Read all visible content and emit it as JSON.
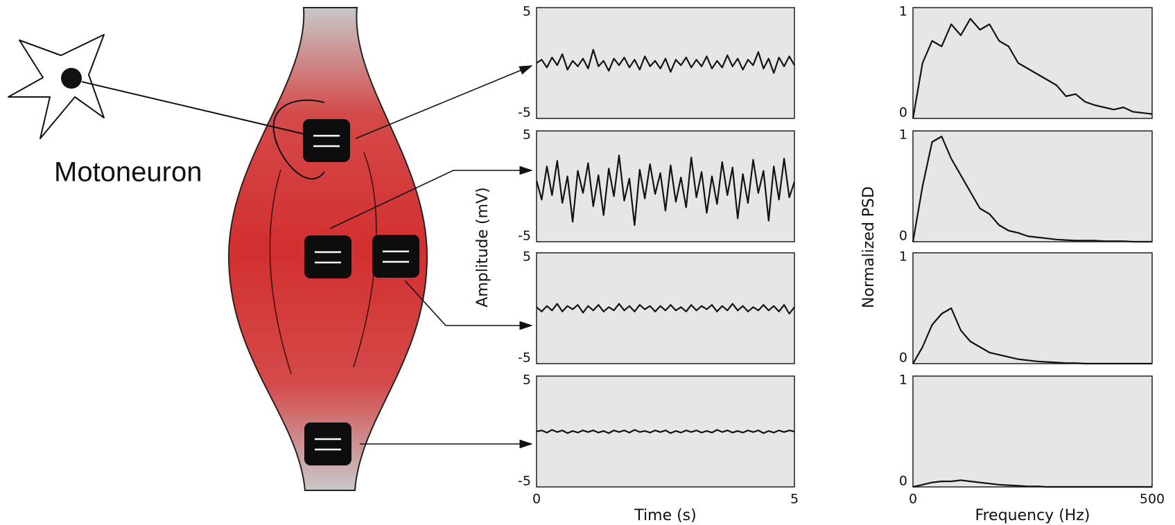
{
  "diagram": {
    "label": "Motoneuron"
  },
  "chart_data": [
    {
      "type": "line",
      "x": [
        0,
        0.1,
        0.2,
        0.3,
        0.4,
        0.5,
        0.6,
        0.7,
        0.8,
        0.9,
        1,
        1.1,
        1.2,
        1.3,
        1.4,
        1.5,
        1.6,
        1.7,
        1.8,
        1.9,
        2,
        2.1,
        2.2,
        2.3,
        2.4,
        2.5,
        2.6,
        2.7,
        2.8,
        2.9,
        3,
        3.1,
        3.2,
        3.3,
        3.4,
        3.5,
        3.6,
        3.7,
        3.8,
        3.9,
        4,
        4.1,
        4.2,
        4.3,
        4.4,
        4.5,
        4.6,
        4.7,
        4.8,
        4.9,
        5
      ],
      "values": [
        0,
        0.3,
        -0.4,
        0.5,
        -0.2,
        0.8,
        -0.6,
        0.2,
        -0.3,
        0.4,
        -0.5,
        1.2,
        -0.3,
        0.2,
        -0.7,
        0.4,
        -0.2,
        0.5,
        -0.4,
        0.3,
        -0.6,
        0.6,
        -0.3,
        0.2,
        -0.5,
        0.4,
        -0.8,
        0.3,
        -0.2,
        0.5,
        -0.4,
        0.3,
        -0.3,
        0.6,
        -0.5,
        0.2,
        -0.4,
        0.7,
        -0.3,
        0.4,
        -0.6,
        0.3,
        -0.2,
        1.0,
        -0.5,
        0.4,
        -0.9,
        0.5,
        -0.3,
        0.6,
        -0.2
      ],
      "color": "#111111",
      "xlim": [
        0,
        5
      ],
      "ylim": [
        -5,
        5
      ],
      "yticks": [
        -5,
        5
      ]
    },
    {
      "type": "line",
      "x": [
        0,
        0.1,
        0.2,
        0.3,
        0.4,
        0.5,
        0.6,
        0.7,
        0.8,
        0.9,
        1,
        1.1,
        1.2,
        1.3,
        1.4,
        1.5,
        1.6,
        1.7,
        1.8,
        1.9,
        2,
        2.1,
        2.2,
        2.3,
        2.4,
        2.5,
        2.6,
        2.7,
        2.8,
        2.9,
        3,
        3.1,
        3.2,
        3.3,
        3.4,
        3.5,
        3.6,
        3.7,
        3.8,
        3.9,
        4,
        4.1,
        4.2,
        4.3,
        4.4,
        4.5,
        4.6,
        4.7,
        4.8,
        4.9,
        5
      ],
      "values": [
        0.5,
        -1.2,
        1.8,
        -0.8,
        2.3,
        -1.5,
        0.9,
        -3.2,
        1.4,
        -0.6,
        2.1,
        -1.8,
        1.0,
        -2.6,
        1.6,
        -0.9,
        2.8,
        -1.3,
        0.7,
        -3.5,
        1.5,
        -1.1,
        2.0,
        -0.7,
        1.2,
        -2.2,
        1.9,
        -1.4,
        0.8,
        -1.9,
        2.6,
        -1.0,
        1.3,
        -2.4,
        0.9,
        -1.6,
        2.2,
        -0.8,
        1.7,
        -2.9,
        1.1,
        -1.5,
        2.4,
        -0.6,
        1.4,
        -3.1,
        1.8,
        -1.2,
        2.5,
        -1.0,
        0.4
      ],
      "color": "#111111",
      "xlim": [
        0,
        5
      ],
      "ylim": [
        -5,
        5
      ],
      "yticks": [
        -5,
        5
      ],
      "ylabel": "Amplitude (mV)"
    },
    {
      "type": "line",
      "x": [
        0,
        0.1,
        0.2,
        0.3,
        0.4,
        0.5,
        0.6,
        0.7,
        0.8,
        0.9,
        1,
        1.1,
        1.2,
        1.3,
        1.4,
        1.5,
        1.6,
        1.7,
        1.8,
        1.9,
        2,
        2.1,
        2.2,
        2.3,
        2.4,
        2.5,
        2.6,
        2.7,
        2.8,
        2.9,
        3,
        3.1,
        3.2,
        3.3,
        3.4,
        3.5,
        3.6,
        3.7,
        3.8,
        3.9,
        4,
        4.1,
        4.2,
        4.3,
        4.4,
        4.5,
        4.6,
        4.7,
        4.8,
        4.9,
        5
      ],
      "values": [
        0.1,
        -0.3,
        0.2,
        -0.2,
        0.4,
        -0.3,
        0.2,
        -0.1,
        0.3,
        -0.4,
        0.2,
        -0.2,
        0.3,
        -0.3,
        0.1,
        -0.2,
        0.4,
        -0.2,
        0.2,
        -0.3,
        0.3,
        -0.1,
        0.2,
        -0.3,
        0.2,
        -0.2,
        0.3,
        -0.2,
        0.1,
        -0.3,
        0.3,
        -0.2,
        0.2,
        -0.1,
        0.3,
        -0.3,
        0.2,
        -0.2,
        0.4,
        -0.2,
        0.2,
        -0.3,
        0.1,
        -0.2,
        0.3,
        -0.2,
        0.2,
        -0.3,
        0.3,
        -0.5,
        0.1
      ],
      "color": "#111111",
      "xlim": [
        0,
        5
      ],
      "ylim": [
        -5,
        5
      ],
      "yticks": [
        -5,
        5
      ]
    },
    {
      "type": "line",
      "x": [
        0,
        0.1,
        0.2,
        0.3,
        0.4,
        0.5,
        0.6,
        0.7,
        0.8,
        0.9,
        1,
        1.1,
        1.2,
        1.3,
        1.4,
        1.5,
        1.6,
        1.7,
        1.8,
        1.9,
        2,
        2.1,
        2.2,
        2.3,
        2.4,
        2.5,
        2.6,
        2.7,
        2.8,
        2.9,
        3,
        3.1,
        3.2,
        3.3,
        3.4,
        3.5,
        3.6,
        3.7,
        3.8,
        3.9,
        4,
        4.1,
        4.2,
        4.3,
        4.4,
        4.5,
        4.6,
        4.7,
        4.8,
        4.9,
        5
      ],
      "values": [
        0,
        0.1,
        -0.1,
        0.15,
        -0.05,
        0.1,
        -0.15,
        0.05,
        -0.1,
        0.1,
        -0.05,
        0.1,
        -0.1,
        0.05,
        -0.15,
        0.1,
        -0.05,
        0.1,
        -0.1,
        0.15,
        -0.05,
        0.05,
        -0.1,
        0.1,
        -0.05,
        0.1,
        -0.15,
        0.05,
        -0.1,
        0.1,
        -0.05,
        0.1,
        -0.1,
        0.05,
        -0.1,
        0.15,
        -0.05,
        0.1,
        -0.1,
        0.05,
        -0.1,
        0.1,
        -0.05,
        0.1,
        -0.15,
        0.05,
        -0.1,
        0.1,
        -0.05,
        0.1,
        0
      ],
      "color": "#111111",
      "xlim": [
        0,
        5
      ],
      "ylim": [
        -5,
        5
      ],
      "yticks": [
        -5,
        5
      ],
      "xticks": [
        0,
        5
      ],
      "xlabel": "Time (s)"
    },
    {
      "type": "line",
      "x": [
        0,
        20,
        40,
        60,
        80,
        100,
        120,
        140,
        160,
        180,
        200,
        220,
        240,
        260,
        280,
        300,
        320,
        340,
        360,
        380,
        400,
        420,
        440,
        460,
        480,
        500
      ],
      "values": [
        0,
        0.5,
        0.7,
        0.65,
        0.85,
        0.75,
        0.9,
        0.8,
        0.85,
        0.7,
        0.65,
        0.5,
        0.45,
        0.4,
        0.35,
        0.3,
        0.2,
        0.22,
        0.15,
        0.12,
        0.1,
        0.08,
        0.1,
        0.06,
        0.05,
        0.04
      ],
      "color": "#111111",
      "xlim": [
        0,
        500
      ],
      "ylim": [
        0,
        1
      ],
      "yticks": [
        0,
        1
      ]
    },
    {
      "type": "line",
      "x": [
        0,
        20,
        40,
        60,
        80,
        100,
        120,
        140,
        160,
        180,
        200,
        220,
        240,
        260,
        280,
        300,
        320,
        340,
        360,
        380,
        400,
        420,
        440,
        460,
        480,
        500
      ],
      "values": [
        0,
        0.5,
        0.9,
        0.95,
        0.75,
        0.6,
        0.45,
        0.3,
        0.25,
        0.15,
        0.1,
        0.08,
        0.05,
        0.04,
        0.03,
        0.02,
        0.015,
        0.01,
        0.01,
        0.01,
        0.005,
        0.005,
        0.005,
        0,
        0,
        0
      ],
      "color": "#111111",
      "xlim": [
        0,
        500
      ],
      "ylim": [
        0,
        1
      ],
      "yticks": [
        0,
        1
      ],
      "ylabel": "Normalized PSD"
    },
    {
      "type": "line",
      "x": [
        0,
        20,
        40,
        60,
        80,
        100,
        120,
        140,
        160,
        180,
        200,
        220,
        240,
        260,
        280,
        300,
        320,
        340,
        360,
        380,
        400,
        420,
        440,
        460,
        480,
        500
      ],
      "values": [
        0,
        0.15,
        0.35,
        0.45,
        0.5,
        0.3,
        0.2,
        0.15,
        0.1,
        0.08,
        0.06,
        0.04,
        0.03,
        0.02,
        0.015,
        0.01,
        0.005,
        0.005,
        0,
        0,
        0,
        0,
        0,
        0,
        0,
        0
      ],
      "color": "#111111",
      "xlim": [
        0,
        500
      ],
      "ylim": [
        0,
        1
      ],
      "yticks": [
        0,
        1
      ]
    },
    {
      "type": "line",
      "x": [
        0,
        20,
        40,
        60,
        80,
        100,
        120,
        140,
        160,
        180,
        200,
        220,
        240,
        260,
        280,
        300,
        320,
        340,
        360,
        380,
        400,
        420,
        440,
        460,
        480,
        500
      ],
      "values": [
        0,
        0.02,
        0.04,
        0.05,
        0.05,
        0.06,
        0.05,
        0.04,
        0.03,
        0.02,
        0.015,
        0.01,
        0.005,
        0.005,
        0,
        0,
        0,
        0,
        0,
        0,
        0,
        0,
        0,
        0,
        0,
        0
      ],
      "color": "#111111",
      "xlim": [
        0,
        500
      ],
      "ylim": [
        0,
        1
      ],
      "yticks": [
        0,
        1
      ],
      "xticks": [
        0,
        500
      ],
      "xlabel": "Frequency (Hz)"
    }
  ]
}
